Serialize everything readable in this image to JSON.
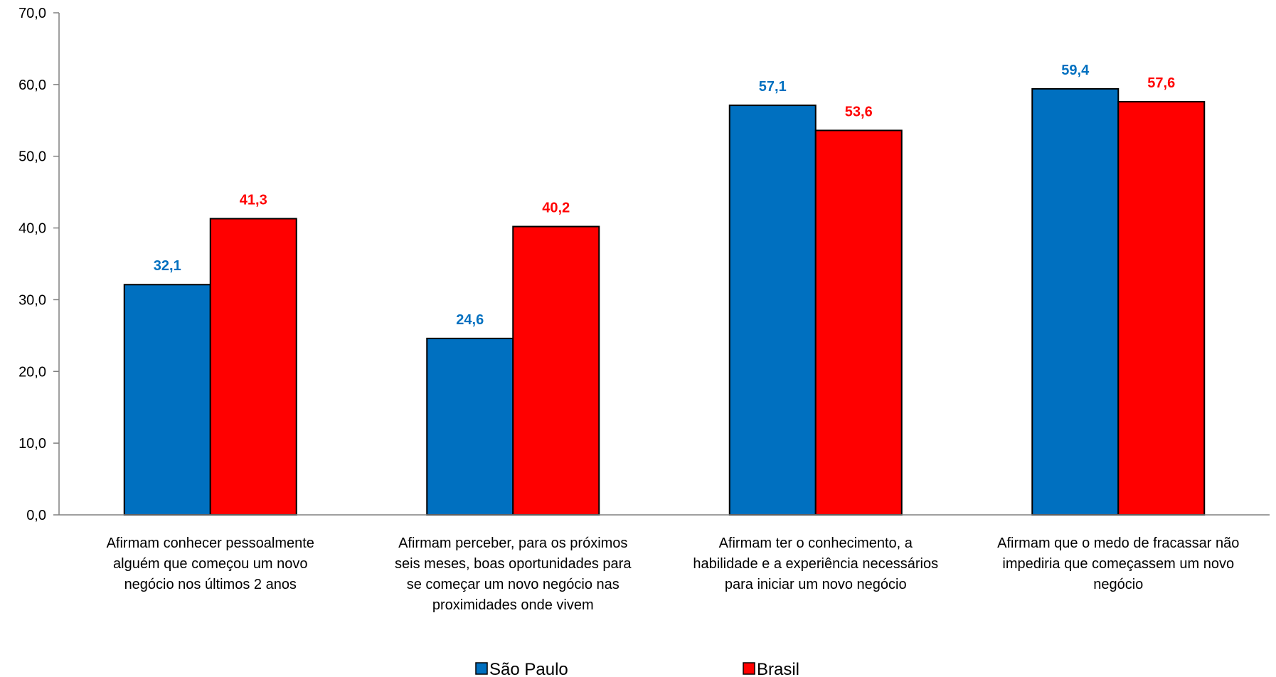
{
  "chart_data": {
    "type": "bar",
    "title": "",
    "xlabel": "",
    "ylabel": "",
    "ylim": [
      0,
      70
    ],
    "yticks": [
      "0,0",
      "10,0",
      "20,0",
      "30,0",
      "40,0",
      "50,0",
      "60,0",
      "70,0"
    ],
    "ytick_values": [
      0,
      10,
      20,
      30,
      40,
      50,
      60,
      70
    ],
    "grid": false,
    "legend_position": "bottom",
    "categories": [
      [
        "Afirmam conhecer  pessoalmente",
        "alguém que começou  um novo",
        "negócio nos  últimos  2 anos"
      ],
      [
        "Afirmam perceber,  para os próximos",
        "seis meses, boas oportunidades  para",
        "se começar um novo negócio  nas",
        "proximidades  onde vivem"
      ],
      [
        "Afirmam ter o conhecimento,  a",
        "habilidade  e a experiência  necessários",
        "para iniciar um novo negócio"
      ],
      [
        "Afirmam que o medo de fracassar não",
        "impediria  que começassem um novo",
        "negócio"
      ]
    ],
    "series": [
      {
        "name": "São Paulo",
        "color": "#0070C0",
        "values": [
          32.1,
          24.6,
          57.1,
          59.4
        ],
        "labels": [
          "32,1",
          "24,6",
          "57,1",
          "59,4"
        ]
      },
      {
        "name": "Brasil",
        "color": "#FF0000",
        "values": [
          41.3,
          40.2,
          53.6,
          57.6
        ],
        "labels": [
          "41,3",
          "40,2",
          "53,6",
          "57,6"
        ]
      }
    ]
  }
}
